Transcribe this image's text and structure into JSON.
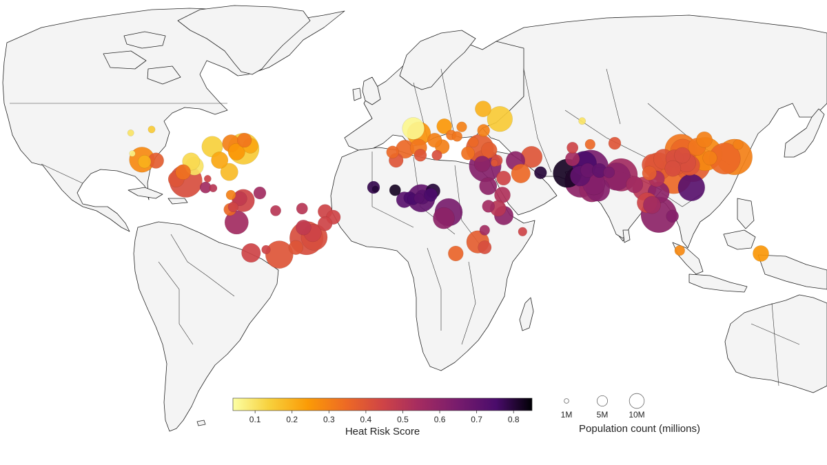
{
  "colorbar": {
    "title": "Heat Risk Score",
    "ticks": [
      "0.1",
      "0.2",
      "0.3",
      "0.4",
      "0.5",
      "0.6",
      "0.7",
      "0.8"
    ],
    "min": 0.04,
    "max": 0.85
  },
  "size_legend": {
    "title": "Population count (millions)",
    "entries": [
      {
        "label": "1M",
        "value": 1
      },
      {
        "label": "5M",
        "value": 5
      },
      {
        "label": "10M",
        "value": 10
      }
    ]
  },
  "colors": {
    "land": "#f4f4f4",
    "border": "#222222",
    "ocean": "#ffffff"
  },
  "cities": [
    {
      "lon": -118.2,
      "lat": 34.0,
      "pop": 12.5,
      "risk": 0.28
    },
    {
      "lon": -117.1,
      "lat": 32.7,
      "pop": 3.3,
      "risk": 0.2
    },
    {
      "lon": -112.1,
      "lat": 33.4,
      "pop": 4.8,
      "risk": 0.38
    },
    {
      "lon": -96.8,
      "lat": 32.8,
      "pop": 6.0,
      "risk": 0.12
    },
    {
      "lon": -95.4,
      "lat": 29.8,
      "pop": 6.5,
      "risk": 0.1
    },
    {
      "lon": -87.6,
      "lat": 41.9,
      "pop": 8.5,
      "risk": 0.14
    },
    {
      "lon": -84.4,
      "lat": 33.7,
      "pop": 5.5,
      "risk": 0.22
    },
    {
      "lon": -80.2,
      "lat": 25.8,
      "pop": 6.0,
      "risk": 0.18
    },
    {
      "lon": -77.0,
      "lat": 38.9,
      "pop": 5.5,
      "risk": 0.25
    },
    {
      "lon": -74.0,
      "lat": 40.7,
      "pop": 19.0,
      "risk": 0.15
    },
    {
      "lon": -71.0,
      "lat": 42.4,
      "pop": 4.5,
      "risk": 0.22
    },
    {
      "lon": -79.4,
      "lat": 43.7,
      "pop": 6.0,
      "risk": 0.3
    },
    {
      "lon": -73.6,
      "lat": 45.5,
      "pop": 4.0,
      "risk": 0.32
    },
    {
      "lon": -122.4,
      "lat": 37.8,
      "pop": 0.7,
      "risk": 0.07
    },
    {
      "lon": -123.1,
      "lat": 49.3,
      "pop": 0.8,
      "risk": 0.1
    },
    {
      "lon": -114.0,
      "lat": 51.0,
      "pop": 1.0,
      "risk": 0.15
    },
    {
      "lon": -99.1,
      "lat": 19.4,
      "pop": 21.0,
      "risk": 0.42
    },
    {
      "lon": -103.3,
      "lat": 20.7,
      "pop": 5.0,
      "risk": 0.4
    },
    {
      "lon": -100.3,
      "lat": 25.7,
      "pop": 4.5,
      "risk": 0.33
    },
    {
      "lon": -89.6,
      "lat": 21.0,
      "pop": 1.0,
      "risk": 0.45
    },
    {
      "lon": -90.5,
      "lat": 14.6,
      "pop": 2.5,
      "risk": 0.55
    },
    {
      "lon": -87.2,
      "lat": 14.1,
      "pop": 1.2,
      "risk": 0.5
    },
    {
      "lon": -79.5,
      "lat": 9.0,
      "pop": 1.8,
      "risk": 0.3
    },
    {
      "lon": -74.1,
      "lat": 4.7,
      "pop": 10.0,
      "risk": 0.45
    },
    {
      "lon": -75.6,
      "lat": 6.2,
      "pop": 4.0,
      "risk": 0.48
    },
    {
      "lon": -66.9,
      "lat": 10.5,
      "pop": 3.0,
      "risk": 0.55
    },
    {
      "lon": -78.5,
      "lat": -0.2,
      "pop": 2.0,
      "risk": 0.45
    },
    {
      "lon": -79.9,
      "lat": -2.2,
      "pop": 3.0,
      "risk": 0.35
    },
    {
      "lon": -77.0,
      "lat": -12.0,
      "pop": 11.0,
      "risk": 0.55
    },
    {
      "lon": -60.0,
      "lat": -3.1,
      "pop": 2.2,
      "risk": 0.5
    },
    {
      "lon": -48.5,
      "lat": -1.5,
      "pop": 2.5,
      "risk": 0.5
    },
    {
      "lon": -38.5,
      "lat": -3.7,
      "pop": 4.0,
      "risk": 0.45
    },
    {
      "lon": -34.9,
      "lat": -8.1,
      "pop": 4.0,
      "risk": 0.45
    },
    {
      "lon": -38.5,
      "lat": -13.0,
      "pop": 4.0,
      "risk": 0.45
    },
    {
      "lon": -47.9,
      "lat": -15.8,
      "pop": 4.5,
      "risk": 0.48
    },
    {
      "lon": -43.9,
      "lat": -19.9,
      "pop": 6.0,
      "risk": 0.45
    },
    {
      "lon": -46.6,
      "lat": -23.5,
      "pop": 22.0,
      "risk": 0.42
    },
    {
      "lon": -43.2,
      "lat": -22.9,
      "pop": 13.5,
      "risk": 0.42
    },
    {
      "lon": -51.2,
      "lat": -30.0,
      "pop": 4.0,
      "risk": 0.4
    },
    {
      "lon": -70.7,
      "lat": -33.5,
      "pop": 7.0,
      "risk": 0.45
    },
    {
      "lon": -58.4,
      "lat": -34.6,
      "pop": 15.0,
      "risk": 0.4
    },
    {
      "lon": -64.2,
      "lat": -31.4,
      "pop": 1.5,
      "risk": 0.45
    },
    {
      "lon": -0.1,
      "lat": 51.5,
      "pop": 9.5,
      "risk": 0.06
    },
    {
      "lon": 2.35,
      "lat": 48.9,
      "pop": 11.0,
      "risk": 0.26
    },
    {
      "lon": -3.7,
      "lat": 40.4,
      "pop": 6.5,
      "risk": 0.35
    },
    {
      "lon": 2.2,
      "lat": 41.4,
      "pop": 5.5,
      "risk": 0.32
    },
    {
      "lon": -9.1,
      "lat": 38.7,
      "pop": 3.0,
      "risk": 0.35
    },
    {
      "lon": 12.5,
      "lat": 41.9,
      "pop": 4.0,
      "risk": 0.3
    },
    {
      "lon": 9.2,
      "lat": 45.5,
      "pop": 4.0,
      "risk": 0.3
    },
    {
      "lon": 13.4,
      "lat": 52.5,
      "pop": 4.5,
      "risk": 0.25
    },
    {
      "lon": 21.0,
      "lat": 52.2,
      "pop": 2.0,
      "risk": 0.3
    },
    {
      "lon": 16.4,
      "lat": 48.2,
      "pop": 2.0,
      "risk": 0.32
    },
    {
      "lon": 19.0,
      "lat": 47.5,
      "pop": 2.0,
      "risk": 0.32
    },
    {
      "lon": 26.1,
      "lat": 44.4,
      "pop": 2.0,
      "risk": 0.35
    },
    {
      "lon": 23.7,
      "lat": 38.0,
      "pop": 3.5,
      "risk": 0.33
    },
    {
      "lon": 28.9,
      "lat": 41.0,
      "pop": 15.0,
      "risk": 0.38
    },
    {
      "lon": 32.9,
      "lat": 39.9,
      "pop": 5.0,
      "risk": 0.38
    },
    {
      "lon": 30.5,
      "lat": 50.5,
      "pop": 3.0,
      "risk": 0.3
    },
    {
      "lon": 37.6,
      "lat": 55.8,
      "pop": 12.5,
      "risk": 0.15
    },
    {
      "lon": 30.3,
      "lat": 59.9,
      "pop": 5.0,
      "risk": 0.2
    },
    {
      "lon": -7.6,
      "lat": 33.6,
      "pop": 4.0,
      "risk": 0.4
    },
    {
      "lon": 3.0,
      "lat": 36.8,
      "pop": 3.0,
      "risk": 0.4
    },
    {
      "lon": 10.2,
      "lat": 36.8,
      "pop": 2.0,
      "risk": 0.42
    },
    {
      "lon": 31.2,
      "lat": 30.0,
      "pop": 20.0,
      "risk": 0.62
    },
    {
      "lon": 29.9,
      "lat": 31.2,
      "pop": 5.0,
      "risk": 0.6
    },
    {
      "lon": 35.2,
      "lat": 31.8,
      "pop": 1.0,
      "risk": 0.4
    },
    {
      "lon": 36.3,
      "lat": 33.5,
      "pop": 2.5,
      "risk": 0.42
    },
    {
      "lon": 44.4,
      "lat": 33.3,
      "pop": 7.0,
      "risk": 0.6
    },
    {
      "lon": 46.7,
      "lat": 24.7,
      "pop": 7.0,
      "risk": 0.35
    },
    {
      "lon": 39.2,
      "lat": 21.5,
      "pop": 4.0,
      "risk": 0.45
    },
    {
      "lon": 51.4,
      "lat": 35.7,
      "pop": 9.0,
      "risk": 0.4
    },
    {
      "lon": 55.3,
      "lat": 25.3,
      "pop": 3.0,
      "risk": 0.8
    },
    {
      "lon": 69.2,
      "lat": 41.3,
      "pop": 2.5,
      "risk": 0.45
    },
    {
      "lon": 69.2,
      "lat": 34.5,
      "pop": 4.0,
      "risk": 0.55
    },
    {
      "lon": 67.0,
      "lat": 24.9,
      "pop": 16.0,
      "risk": 0.82
    },
    {
      "lon": 74.3,
      "lat": 31.5,
      "pop": 12.0,
      "risk": 0.75
    },
    {
      "lon": 77.2,
      "lat": 28.6,
      "pop": 30.0,
      "risk": 0.65
    },
    {
      "lon": 72.8,
      "lat": 19.1,
      "pop": 20.0,
      "risk": 0.6
    },
    {
      "lon": 88.4,
      "lat": 22.6,
      "pop": 15.0,
      "risk": 0.6
    },
    {
      "lon": 80.3,
      "lat": 13.1,
      "pop": 11.0,
      "risk": 0.62
    },
    {
      "lon": 77.6,
      "lat": 13.0,
      "pop": 12.0,
      "risk": 0.58
    },
    {
      "lon": 78.5,
      "lat": 17.4,
      "pop": 10.0,
      "risk": 0.62
    },
    {
      "lon": 72.6,
      "lat": 23.0,
      "pop": 8.0,
      "risk": 0.7
    },
    {
      "lon": 75.8,
      "lat": 26.9,
      "pop": 4.0,
      "risk": 0.68
    },
    {
      "lon": 80.9,
      "lat": 26.8,
      "pop": 4.0,
      "risk": 0.7
    },
    {
      "lon": 85.1,
      "lat": 25.6,
      "pop": 2.5,
      "risk": 0.65
    },
    {
      "lon": 90.4,
      "lat": 23.8,
      "pop": 21.0,
      "risk": 0.55
    },
    {
      "lon": 96.2,
      "lat": 16.8,
      "pop": 5.5,
      "risk": 0.55
    },
    {
      "lon": 100.5,
      "lat": 13.8,
      "pop": 11.0,
      "risk": 0.5
    },
    {
      "lon": 106.7,
      "lat": 10.8,
      "pop": 9.0,
      "risk": 0.6
    },
    {
      "lon": 105.8,
      "lat": 21.0,
      "pop": 5.0,
      "risk": 0.52
    },
    {
      "lon": 101.7,
      "lat": 3.1,
      "pop": 8.0,
      "risk": 0.45
    },
    {
      "lon": 103.8,
      "lat": 1.35,
      "pop": 6.0,
      "risk": 0.55
    },
    {
      "lon": 106.8,
      "lat": -6.2,
      "pop": 33.0,
      "risk": 0.6
    },
    {
      "lon": 112.7,
      "lat": -7.3,
      "pop": 3.0,
      "risk": 0.62
    },
    {
      "lon": 121.0,
      "lat": 14.6,
      "pop": 14.0,
      "risk": 0.72
    },
    {
      "lon": 116.4,
      "lat": 39.9,
      "pop": 20.0,
      "risk": 0.32
    },
    {
      "lon": 121.5,
      "lat": 31.2,
      "pop": 27.0,
      "risk": 0.38
    },
    {
      "lon": 113.3,
      "lat": 23.1,
      "pop": 65.0,
      "risk": 0.35
    },
    {
      "lon": 114.3,
      "lat": 30.6,
      "pop": 8.0,
      "risk": 0.4
    },
    {
      "lon": 104.1,
      "lat": 30.7,
      "pop": 9.0,
      "risk": 0.4
    },
    {
      "lon": 106.6,
      "lat": 29.6,
      "pop": 15.0,
      "risk": 0.38
    },
    {
      "lon": 108.9,
      "lat": 34.3,
      "pop": 8.0,
      "risk": 0.4
    },
    {
      "lon": 117.2,
      "lat": 39.1,
      "pop": 12.0,
      "risk": 0.35
    },
    {
      "lon": 118.8,
      "lat": 32.1,
      "pop": 7.0,
      "risk": 0.42
    },
    {
      "lon": 120.2,
      "lat": 30.3,
      "pop": 8.0,
      "risk": 0.4
    },
    {
      "lon": 113.6,
      "lat": 34.8,
      "pop": 6.0,
      "risk": 0.42
    },
    {
      "lon": 117.0,
      "lat": 36.7,
      "pop": 5.0,
      "risk": 0.42
    },
    {
      "lon": 123.4,
      "lat": 41.8,
      "pop": 6.0,
      "risk": 0.32
    },
    {
      "lon": 126.6,
      "lat": 45.8,
      "pop": 5.0,
      "risk": 0.3
    },
    {
      "lon": 112.9,
      "lat": 28.2,
      "pop": 5.0,
      "risk": 0.42
    },
    {
      "lon": 102.7,
      "lat": 25.0,
      "pop": 4.0,
      "risk": 0.38
    },
    {
      "lon": 126.98,
      "lat": 37.57,
      "pop": 22.0,
      "risk": 0.28
    },
    {
      "lon": 129.0,
      "lat": 35.1,
      "pop": 4.0,
      "risk": 0.3
    },
    {
      "lon": 139.7,
      "lat": 35.7,
      "pop": 37.0,
      "risk": 0.3
    },
    {
      "lon": 135.5,
      "lat": 34.7,
      "pop": 19.0,
      "risk": 0.35
    },
    {
      "lon": 141.3,
      "lat": 43.1,
      "pop": 2.0,
      "risk": 0.3
    },
    {
      "lon": 87.6,
      "lat": 43.8,
      "pop": 3.0,
      "risk": 0.4
    },
    {
      "lon": 76.9,
      "lat": 43.2,
      "pop": 2.0,
      "risk": 0.35
    },
    {
      "lon": 73.4,
      "lat": 54.9,
      "pop": 1.0,
      "risk": 0.1
    },
    {
      "lon": -17.4,
      "lat": 14.7,
      "pop": 3.0,
      "risk": 0.78
    },
    {
      "lon": -16.6,
      "lat": 13.4,
      "pop": 0.8,
      "risk": 0.8
    },
    {
      "lon": -8.0,
      "lat": 12.6,
      "pop": 2.5,
      "risk": 0.82
    },
    {
      "lon": -4.0,
      "lat": 5.3,
      "pop": 5.0,
      "risk": 0.72
    },
    {
      "lon": -1.6,
      "lat": 6.7,
      "pop": 3.0,
      "risk": 0.75
    },
    {
      "lon": -0.2,
      "lat": 5.6,
      "pop": 2.5,
      "risk": 0.75
    },
    {
      "lon": 2.4,
      "lat": 6.4,
      "pop": 2.0,
      "risk": 0.72
    },
    {
      "lon": 3.4,
      "lat": 6.5,
      "pop": 15.0,
      "risk": 0.7
    },
    {
      "lon": 3.9,
      "lat": 7.4,
      "pop": 4.0,
      "risk": 0.72
    },
    {
      "lon": 8.5,
      "lat": 12.0,
      "pop": 4.0,
      "risk": 0.8
    },
    {
      "lon": 7.5,
      "lat": 9.1,
      "pop": 3.5,
      "risk": 0.75
    },
    {
      "lon": 13.2,
      "lat": -8.8,
      "pop": 9.0,
      "risk": 0.6
    },
    {
      "lon": 15.3,
      "lat": -4.3,
      "pop": 15.0,
      "risk": 0.65
    },
    {
      "lon": 32.5,
      "lat": 15.6,
      "pop": 6.0,
      "risk": 0.6
    },
    {
      "lon": 38.7,
      "lat": 9.0,
      "pop": 5.0,
      "risk": 0.52
    },
    {
      "lon": 32.6,
      "lat": 0.3,
      "pop": 3.0,
      "risk": 0.55
    },
    {
      "lon": 36.8,
      "lat": -1.3,
      "pop": 5.0,
      "risk": 0.5
    },
    {
      "lon": 39.3,
      "lat": -6.8,
      "pop": 7.0,
      "risk": 0.6
    },
    {
      "lon": 31.0,
      "lat": -17.8,
      "pop": 2.0,
      "risk": 0.55
    },
    {
      "lon": 28.0,
      "lat": -26.2,
      "pop": 10.0,
      "risk": 0.38
    },
    {
      "lon": 31.0,
      "lat": -29.9,
      "pop": 3.5,
      "risk": 0.42
    },
    {
      "lon": 18.4,
      "lat": -33.9,
      "pop": 4.5,
      "risk": 0.36
    },
    {
      "lon": 47.5,
      "lat": -18.9,
      "pop": 1.5,
      "risk": 0.45
    },
    {
      "lon": 115.9,
      "lat": -32.0,
      "pop": 2.0,
      "risk": 0.28
    },
    {
      "lon": 151.2,
      "lat": -33.9,
      "pop": 5.0,
      "risk": 0.25
    }
  ]
}
